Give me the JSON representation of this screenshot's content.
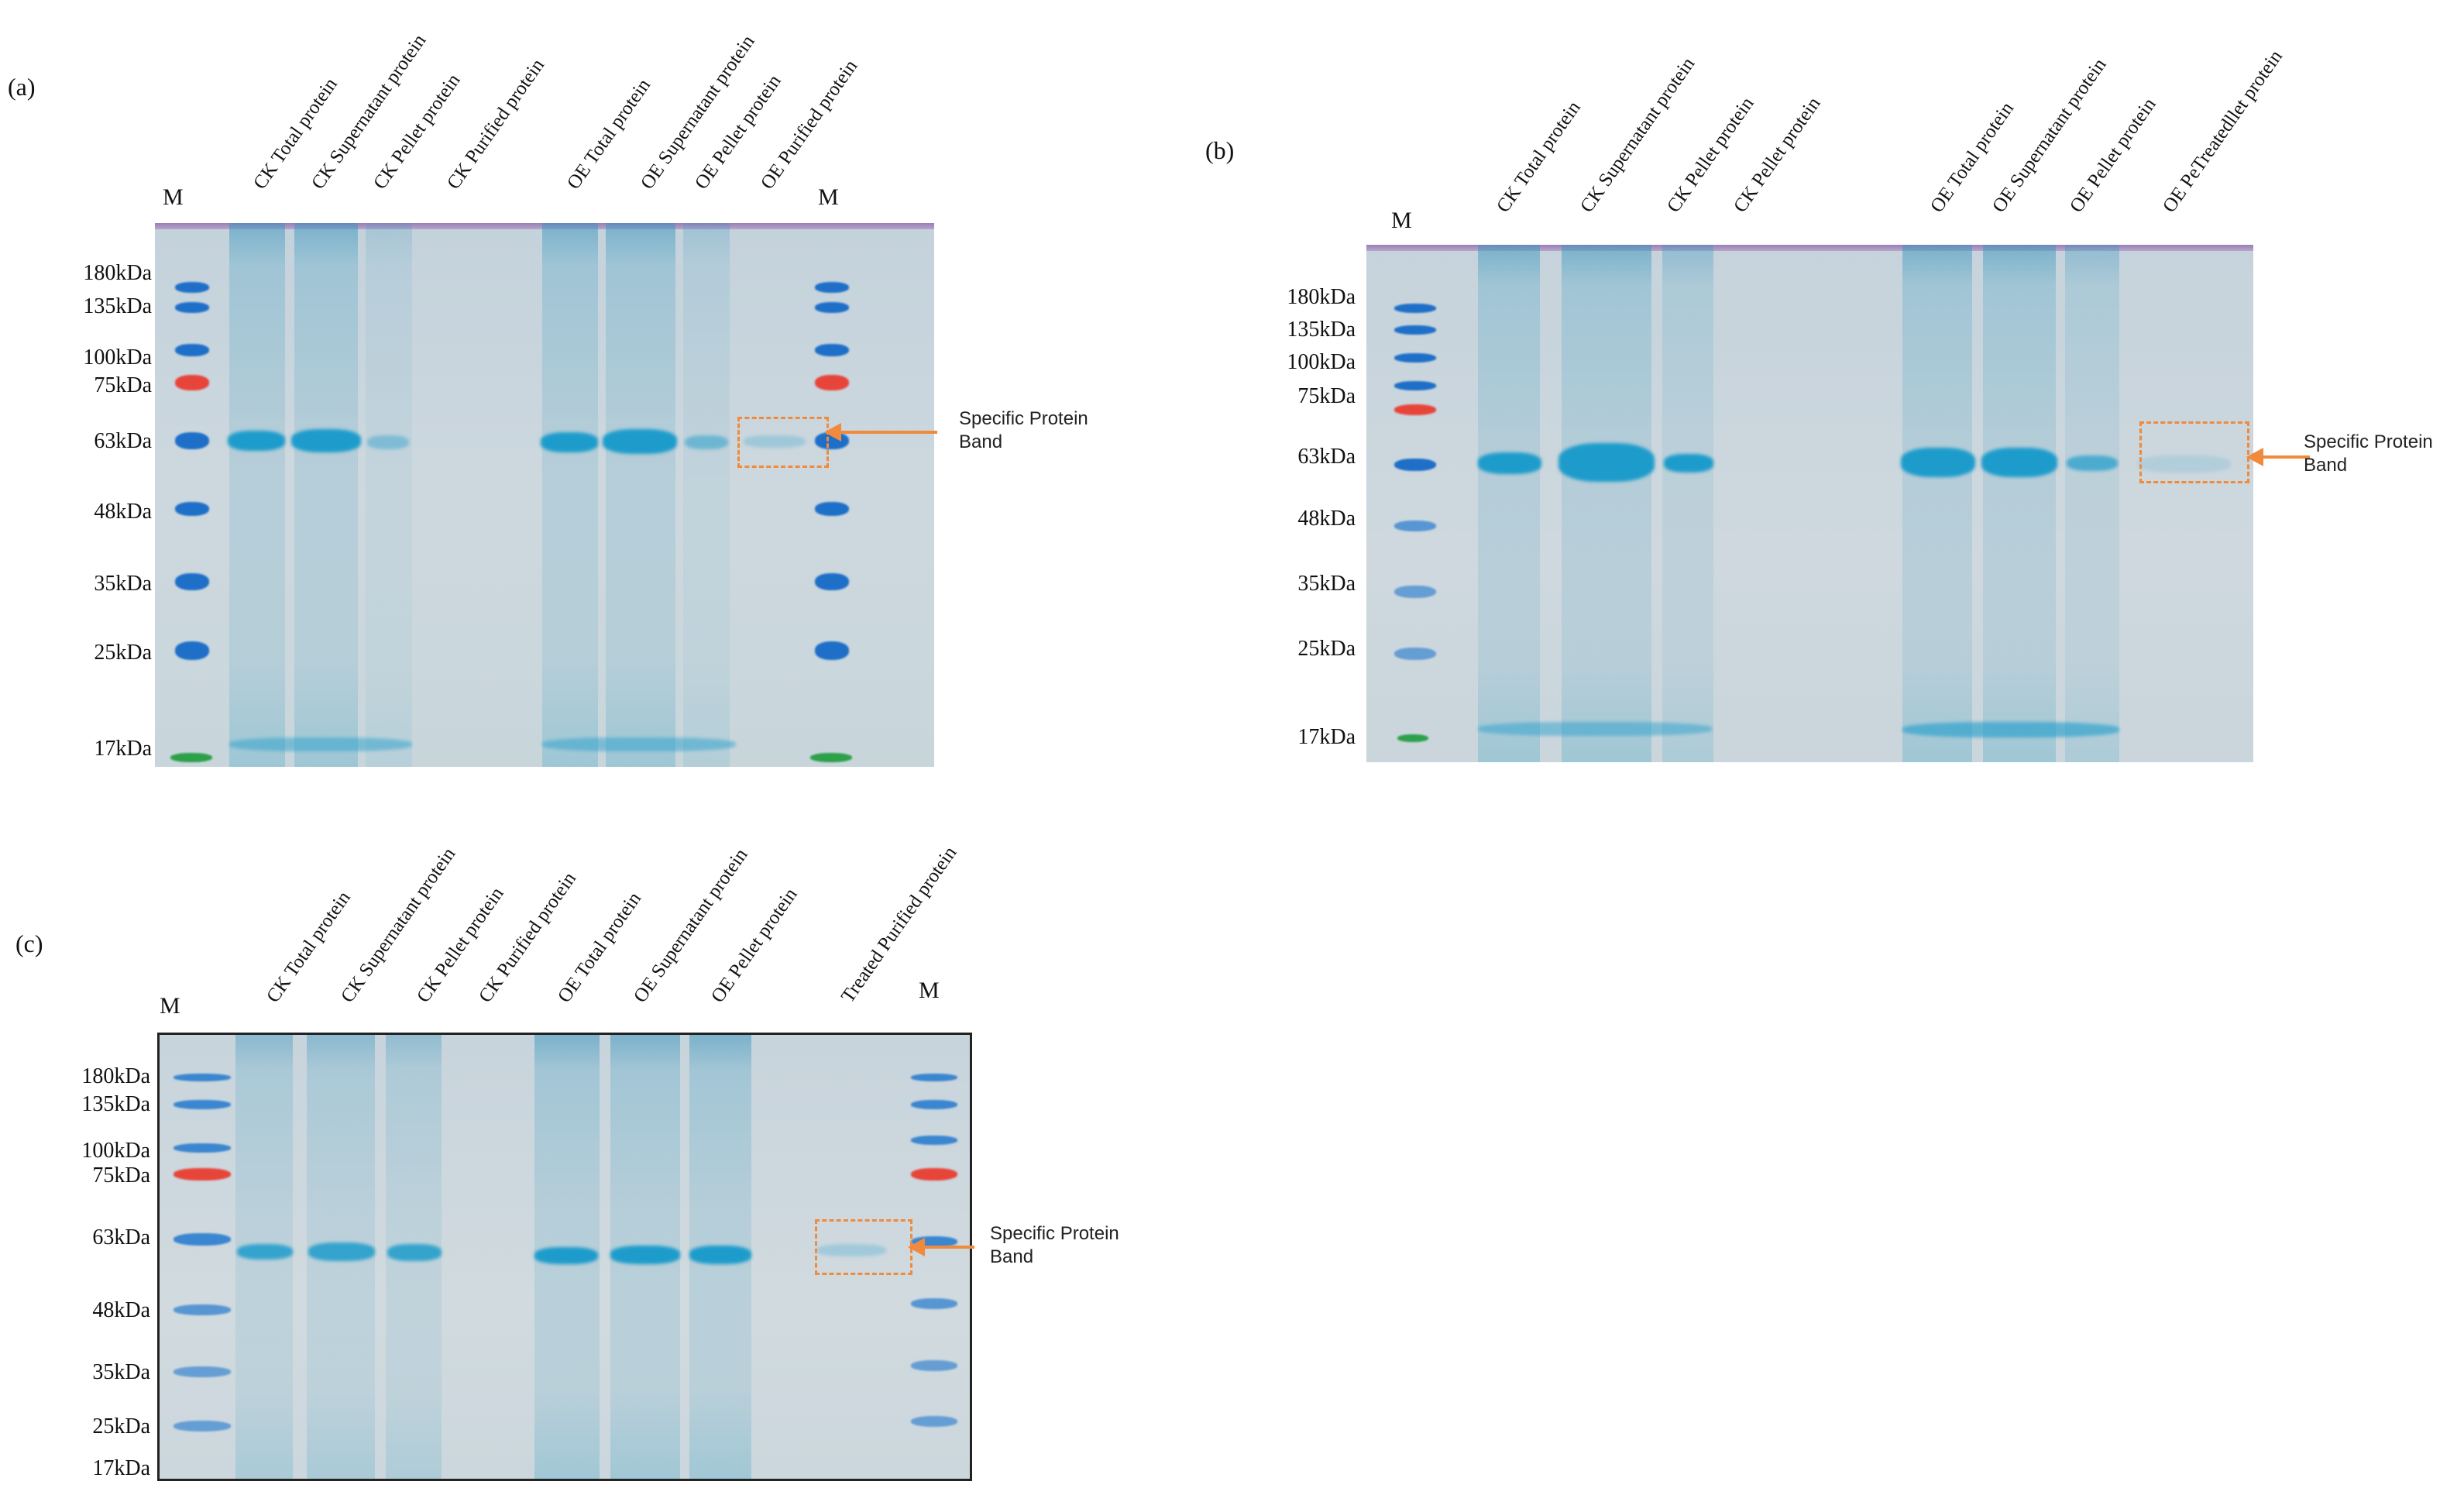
{
  "marker_letter": "M",
  "annotation": {
    "line1": "Specific Protein",
    "line2": "Band",
    "color": "#f08a3c"
  },
  "marker_colors": {
    "blue": "#1e6fc8",
    "red": "#e8453a",
    "green": "#2da04a"
  },
  "panels": {
    "a": {
      "tag": "(a)",
      "lanes": [
        "CK Total protein",
        "CK Supernatant protein",
        "CK Pellet protein",
        "CK Purified protein",
        "OE Total protein",
        "OE Supernatant protein",
        "OE Pellet protein",
        "OE Purified protein"
      ],
      "mw": [
        "180kDa",
        "135kDa",
        "100kDa",
        "75kDa",
        "63kDa",
        "48kDa",
        "35kDa",
        "25kDa",
        "17kDa"
      ]
    },
    "b": {
      "tag": "(b)",
      "lanes": [
        "CK Total protein",
        "CK Supernatant protein",
        "CK Pellet protein",
        "CK Pellet protein",
        "OE Total protein",
        "OE Supernatant protein",
        "OE Pellet protein",
        "OE PeTreatedllet protein"
      ],
      "mw": [
        "180kDa",
        "135kDa",
        "100kDa",
        "75kDa",
        "63kDa",
        "48kDa",
        "35kDa",
        "25kDa",
        "17kDa"
      ]
    },
    "c": {
      "tag": "(c)",
      "lanes": [
        "CK Total protein",
        "CK Supernatant protein",
        "CK Pellet protein",
        "CK Purified protein",
        "OE Total protein",
        "OE Supernatant protein",
        "OE Pellet protein",
        "Treated Purified protein"
      ],
      "mw": [
        "180kDa",
        "135kDa",
        "100kDa",
        "75kDa",
        "63kDa",
        "48kDa",
        "35kDa",
        "25kDa",
        "17kDa"
      ]
    }
  }
}
